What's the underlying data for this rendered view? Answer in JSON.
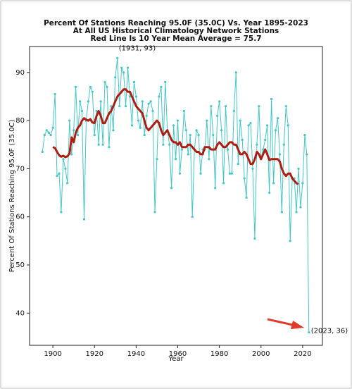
{
  "chart_data": {
    "type": "line",
    "title": [
      "Percent Of Stations Reaching 95.0F (35.0C) Vs. Year 1895-2023",
      "At All US Historical Climatology Network Stations",
      "Red Line Is 10 Year Mean  Average = 75.7"
    ],
    "x_label": "Year",
    "y_label": "Percent Of Stations Reaching 95.0F (35.0C)",
    "annotations": [
      "(1931, 93)",
      "(2023, 36)"
    ],
    "x": [
      1895,
      1896,
      1897,
      1898,
      1899,
      1900,
      1901,
      1902,
      1903,
      1904,
      1905,
      1906,
      1907,
      1908,
      1909,
      1910,
      1911,
      1912,
      1913,
      1914,
      1915,
      1916,
      1917,
      1918,
      1919,
      1920,
      1921,
      1922,
      1923,
      1924,
      1925,
      1926,
      1927,
      1928,
      1929,
      1930,
      1931,
      1932,
      1933,
      1934,
      1935,
      1936,
      1937,
      1938,
      1939,
      1940,
      1941,
      1942,
      1943,
      1944,
      1945,
      1946,
      1947,
      1948,
      1949,
      1950,
      1951,
      1952,
      1953,
      1954,
      1955,
      1956,
      1957,
      1958,
      1959,
      1960,
      1961,
      1962,
      1963,
      1964,
      1965,
      1966,
      1967,
      1968,
      1969,
      1970,
      1971,
      1972,
      1973,
      1974,
      1975,
      1976,
      1977,
      1978,
      1979,
      1980,
      1981,
      1982,
      1983,
      1984,
      1985,
      1986,
      1987,
      1988,
      1989,
      1990,
      1991,
      1992,
      1993,
      1994,
      1995,
      1996,
      1997,
      1998,
      1999,
      2000,
      2001,
      2002,
      2003,
      2004,
      2005,
      2006,
      2007,
      2008,
      2009,
      2010,
      2011,
      2012,
      2013,
      2014,
      2015,
      2016,
      2017,
      2018,
      2019,
      2020,
      2021,
      2022,
      2023
    ],
    "series": [
      {
        "color": "#40c8c8",
        "markers": true,
        "values": [
          73.5,
          77,
          78,
          77.5,
          77,
          78.5,
          85.5,
          68.5,
          69,
          61,
          72,
          70,
          67,
          80,
          73,
          78,
          87,
          77,
          84,
          82,
          59.5,
          80,
          84,
          87,
          86,
          77,
          82,
          75,
          84,
          75,
          88,
          87,
          74.5,
          83,
          78,
          89,
          93,
          83,
          91,
          90,
          83,
          91,
          85,
          79,
          88,
          85,
          80,
          78.5,
          84,
          77,
          81,
          83.5,
          84,
          82,
          61,
          72,
          85,
          87,
          75,
          88,
          78,
          75,
          66,
          79,
          72,
          80,
          69,
          74,
          82,
          78,
          73,
          77,
          60,
          74,
          78,
          77,
          69,
          74,
          74,
          80,
          72,
          83,
          77,
          66,
          81,
          84,
          78,
          67,
          83,
          74,
          69,
          69,
          82,
          90,
          71,
          80,
          76,
          68,
          64,
          79,
          79.5,
          70,
          55.5,
          75,
          83,
          72,
          74,
          76,
          79,
          65,
          84.5,
          67,
          78,
          80.5,
          73,
          61,
          75,
          83,
          79,
          55,
          68,
          68,
          61,
          70,
          62,
          67,
          77,
          73,
          36
        ]
      },
      {
        "color": "#b01c10",
        "markers": false,
        "values": [
          null,
          null,
          null,
          null,
          null,
          74.5,
          74.3,
          73.5,
          72.8,
          72.5,
          72.7,
          72.4,
          72.6,
          73.2,
          76.5,
          75.5,
          77.5,
          78.5,
          79,
          80,
          80.5,
          80.2,
          80,
          80.3,
          79.6,
          79.5,
          81,
          82,
          81,
          79.5,
          79.5,
          80.5,
          81.5,
          82,
          83,
          84,
          85,
          85.5,
          86,
          86.5,
          86.5,
          86,
          86,
          85,
          84,
          83,
          82.5,
          82,
          81.5,
          80,
          78.5,
          78,
          78.5,
          79,
          79.5,
          80,
          79.5,
          78,
          77,
          77.5,
          78,
          77,
          76,
          75.5,
          75.5,
          75,
          75.5,
          74.5,
          74.5,
          74.5,
          75,
          75,
          74.5,
          74,
          73.5,
          73.5,
          73,
          73,
          74.5,
          74.5,
          74.5,
          74,
          74,
          74,
          75,
          75.5,
          75,
          74.5,
          74.5,
          75,
          75.5,
          75.5,
          75,
          75,
          74,
          73,
          73,
          73.5,
          73,
          72,
          71,
          71,
          72,
          73.5,
          73,
          72,
          73,
          74,
          73,
          71.8,
          72,
          72,
          72,
          72,
          71.5,
          70,
          69,
          68.5,
          69,
          69,
          68,
          67.5,
          67,
          66.8,
          null,
          null,
          null,
          null,
          null
        ]
      }
    ],
    "xlim": [
      1888.8,
      2029.5
    ],
    "ylim": [
      33.3,
      95.4
    ],
    "xticks": [
      1900,
      1920,
      1940,
      1960,
      1980,
      2000,
      2020
    ],
    "yticks": [
      40,
      50,
      60,
      70,
      80,
      90
    ]
  }
}
